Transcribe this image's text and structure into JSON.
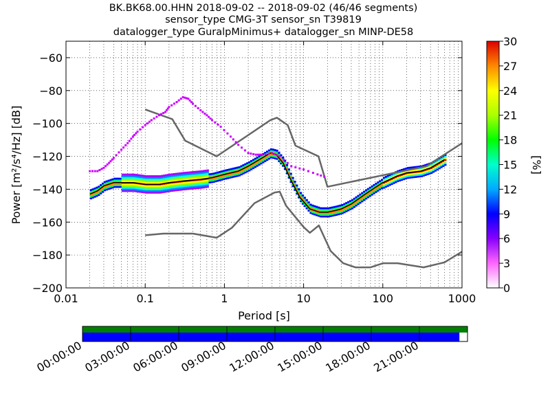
{
  "header": {
    "title_line1": "BK.BK68.00.HHN   2018-09-02 -- 2018-09-02  (46/46 segments)",
    "title_line2": "sensor_type CMG-3T sensor_sn T39819",
    "title_line3": "datalogger_type GuralpMinimus+ datalogger_sn MINP-DE58"
  },
  "chart_data": {
    "type": "heatmap",
    "title": "BK.BK68.00.HHN   2018-09-02 -- 2018-09-02  (46/46 segments)",
    "xlabel": "Period [s]",
    "ylabel": "Power [m²/s⁴/Hz] [dB]",
    "xscale": "log",
    "xlim": [
      0.01,
      1000
    ],
    "ylim": [
      -200,
      -50
    ],
    "x_ticks": [
      "0.01",
      "0.1",
      "1",
      "10",
      "100",
      "1000"
    ],
    "y_ticks": [
      "−60",
      "−80",
      "−100",
      "−120",
      "−140",
      "−160",
      "−180",
      "−200"
    ],
    "grid": true,
    "colorbar": {
      "label": "[%]",
      "min": 0,
      "max": 30,
      "ticks": [
        "0",
        "3",
        "6",
        "9",
        "12",
        "15",
        "18",
        "21",
        "24",
        "27",
        "30"
      ]
    },
    "mean_curve": {
      "x": [
        0.02,
        0.025,
        0.03,
        0.04,
        0.05,
        0.07,
        0.1,
        0.15,
        0.2,
        0.3,
        0.5,
        0.7,
        1,
        1.5,
        2,
        3,
        3.8,
        4.5,
        5.5,
        7,
        9,
        12,
        16,
        20,
        25,
        30,
        40,
        60,
        80,
        100,
        150,
        200,
        300,
        400,
        600
      ],
      "y": [
        -143,
        -141,
        -138,
        -136,
        -136,
        -136,
        -137,
        -137,
        -136,
        -135,
        -134,
        -133,
        -131,
        -129,
        -126,
        -121,
        -118,
        -119,
        -124,
        -135,
        -145,
        -152,
        -154,
        -154,
        -153,
        -152,
        -149,
        -143,
        -139,
        -136,
        -132,
        -130,
        -129,
        -127,
        -122
      ]
    },
    "nlnm": {
      "x": [
        0.1,
        0.17,
        0.4,
        0.8,
        1.24,
        2.4,
        4.3,
        5,
        6,
        10,
        12,
        15.6,
        21.9,
        31.6,
        45,
        70,
        101,
        154,
        328,
        600,
        1000
      ],
      "y": [
        -168,
        -167,
        -167,
        -169.5,
        -163.5,
        -148.5,
        -142,
        -141.5,
        -150,
        -163,
        -166.5,
        -162,
        -177.5,
        -185,
        -187.5,
        -187.5,
        -185,
        -185,
        -187.5,
        -184.5,
        -178
      ]
    },
    "nhnm": {
      "x": [
        0.1,
        0.22,
        0.32,
        0.8,
        3.8,
        4.6,
        6.3,
        7.9,
        15.4,
        20,
        354.8,
        1000
      ],
      "y": [
        -91.5,
        -97.4,
        -110.5,
        -120,
        -98,
        -96.5,
        -101,
        -113.5,
        -120,
        -138.5,
        -126,
        -112
      ]
    },
    "upper_mode_curve": {
      "x": [
        0.02,
        0.025,
        0.03,
        0.035,
        0.04,
        0.05,
        0.06,
        0.07,
        0.08,
        0.1,
        0.12,
        0.15,
        0.18,
        0.2,
        0.25,
        0.3,
        0.35,
        0.4,
        0.5,
        0.6,
        0.7,
        0.9,
        1.2,
        1.5,
        2,
        2.5,
        3,
        4,
        5,
        7,
        10,
        15,
        20
      ],
      "y": [
        -129,
        -129,
        -127,
        -124,
        -121,
        -116,
        -112,
        -108,
        -105,
        -101,
        -98,
        -95,
        -93,
        -90,
        -87,
        -84,
        -85,
        -88,
        -92,
        -95,
        -98,
        -102,
        -108,
        -113,
        -118,
        -119,
        -119,
        -118,
        -120,
        -126,
        -128,
        -131,
        -133
      ]
    },
    "timeline": {
      "ticks": [
        "00:00:00",
        "03:00:00",
        "06:00:00",
        "09:00:00",
        "12:00:00",
        "15:00:00",
        "18:00:00",
        "21:00:00"
      ],
      "top_bar_coverage": 1.0,
      "bottom_bar_coverage": 0.979,
      "top_bar_color": "#008000",
      "bottom_bar_color": "#0000ff"
    }
  }
}
